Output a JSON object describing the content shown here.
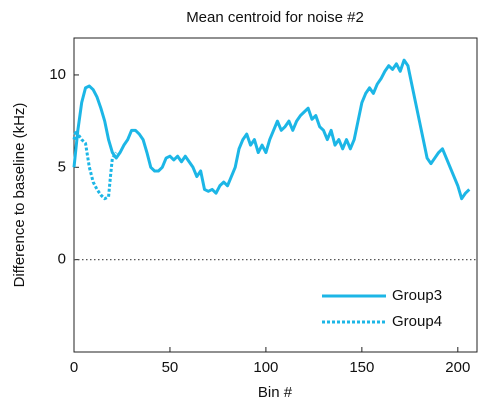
{
  "chart_data": {
    "type": "line",
    "title": "Mean centroid for noise #2",
    "x_label": "Bin #",
    "y_label": "Difference to baseline (kHz)",
    "xlim": [
      0,
      210
    ],
    "ylim": [
      -5,
      12
    ],
    "xticks": [
      0,
      50,
      100,
      150,
      200
    ],
    "yticks": [
      0,
      5,
      10
    ],
    "hline": 0,
    "legend": "lower right",
    "series": [
      {
        "name": "Group3",
        "color": "#1cb6e6",
        "style": "solid",
        "x": [
          0,
          2,
          4,
          6,
          8,
          10,
          12,
          14,
          16,
          18,
          20,
          22,
          24,
          26,
          28,
          30,
          32,
          34,
          36,
          38,
          40,
          42,
          44,
          46,
          48,
          50,
          52,
          54,
          56,
          58,
          60,
          62,
          64,
          66,
          68,
          70,
          72,
          74,
          76,
          78,
          80,
          82,
          84,
          86,
          88,
          90,
          92,
          94,
          96,
          98,
          100,
          102,
          104,
          106,
          108,
          110,
          112,
          114,
          116,
          118,
          120,
          122,
          124,
          126,
          128,
          130,
          132,
          134,
          136,
          138,
          140,
          142,
          144,
          146,
          148,
          150,
          152,
          154,
          156,
          158,
          160,
          162,
          164,
          166,
          168,
          170,
          172,
          174,
          176,
          178,
          180,
          182,
          184,
          186,
          188,
          190,
          192,
          194,
          196,
          198,
          200,
          202,
          204,
          206
        ],
        "values": [
          5,
          7,
          8.5,
          9.3,
          9.4,
          9.2,
          8.8,
          8.2,
          7.5,
          6.5,
          5.8,
          5.5,
          5.8,
          6.2,
          6.5,
          7,
          7,
          6.8,
          6.5,
          5.8,
          5,
          4.8,
          4.8,
          5,
          5.5,
          5.6,
          5.4,
          5.6,
          5.3,
          5.6,
          5.3,
          5,
          4.5,
          4.8,
          3.8,
          3.7,
          3.8,
          3.6,
          4,
          4.2,
          4,
          4.5,
          5,
          6,
          6.5,
          6.8,
          6.2,
          6.5,
          5.8,
          6.2,
          5.8,
          6.5,
          7,
          7.5,
          7,
          7.2,
          7.5,
          7,
          7.5,
          7.8,
          8,
          8.2,
          7.6,
          7.8,
          7.2,
          7,
          6.5,
          7,
          6.2,
          6.5,
          6,
          6.5,
          6,
          6.5,
          7.5,
          8.5,
          9,
          9.3,
          9,
          9.5,
          9.8,
          10.2,
          10.5,
          10.3,
          10.6,
          10.2,
          10.8,
          10.5,
          9.5,
          8.5,
          7.5,
          6.5,
          5.5,
          5.2,
          5.5,
          5.8,
          6,
          5.5,
          5,
          4.5,
          4,
          3.3,
          3.6,
          3.8
        ]
      },
      {
        "name": "Group4",
        "color": "#1cb6e6",
        "style": "dotted",
        "x": [
          0,
          1,
          2,
          4,
          6,
          8,
          10,
          12,
          14,
          16,
          18,
          19,
          20,
          22
        ],
        "values": [
          6.5,
          7,
          6.8,
          6.5,
          6.3,
          5,
          4.2,
          3.8,
          3.5,
          3.3,
          3.4,
          4.5,
          5.5,
          5.8
        ]
      }
    ]
  }
}
